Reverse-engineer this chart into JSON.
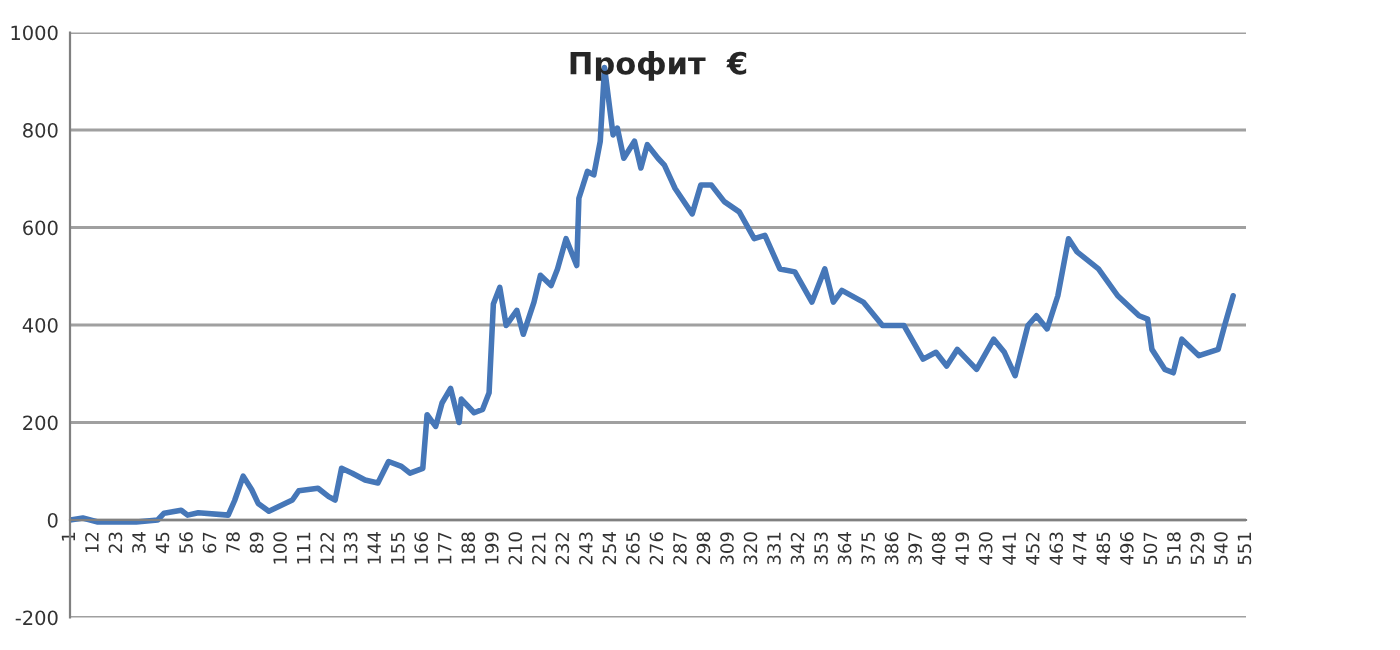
{
  "chart_data": {
    "type": "line",
    "title": "Профит  €",
    "x": [
      1,
      7,
      14,
      32,
      42,
      45,
      53,
      56,
      61,
      75,
      78,
      82,
      86,
      89,
      94,
      105,
      108,
      117,
      122,
      125,
      128,
      133,
      139,
      145,
      150,
      156,
      160,
      166,
      168,
      172,
      175,
      179,
      183,
      184,
      190,
      194,
      197,
      199,
      202,
      205,
      210,
      213,
      218,
      221,
      226,
      229,
      233,
      238,
      239,
      243,
      246,
      249,
      251,
      255,
      257,
      260,
      265,
      268,
      271,
      276,
      279,
      284,
      292,
      296,
      301,
      307,
      314,
      321,
      326,
      333,
      340,
      348,
      354,
      358,
      362,
      372,
      381,
      391,
      400,
      406,
      411,
      416,
      425,
      433,
      438,
      443,
      449,
      453,
      458,
      463,
      468,
      472,
      482,
      491,
      501,
      505,
      507,
      513,
      517,
      521,
      529,
      538,
      541,
      545
    ],
    "series": [
      {
        "color": "#4677b8",
        "values": [
          0,
          4,
          -4,
          -4,
          0,
          14,
          20,
          10,
          15,
          10,
          40,
          90,
          62,
          34,
          18,
          41,
          60,
          65,
          48,
          41,
          106,
          96,
          82,
          76,
          120,
          110,
          96,
          106,
          216,
          192,
          240,
          270,
          200,
          248,
          220,
          227,
          261,
          443,
          477,
          399,
          430,
          381,
          447,
          502,
          481,
          515,
          577,
          522,
          660,
          715,
          708,
          777,
          928,
          790,
          804,
          742,
          777,
          722,
          770,
          742,
          728,
          680,
          628,
          687,
          687,
          653,
          632,
          577,
          584,
          515,
          509,
          447,
          515,
          447,
          471,
          447,
          399,
          399,
          330,
          344,
          316,
          350,
          309,
          371,
          344,
          296,
          399,
          419,
          392,
          460,
          577,
          550,
          515,
          460,
          419,
          412,
          350,
          309,
          302,
          371,
          337,
          350,
          399,
          460
        ]
      }
    ],
    "xlim": [
      1,
      551
    ],
    "xticks": [
      1,
      12,
      23,
      34,
      45,
      56,
      67,
      78,
      89,
      100,
      111,
      122,
      133,
      144,
      155,
      166,
      177,
      188,
      199,
      210,
      221,
      232,
      243,
      254,
      265,
      276,
      287,
      298,
      309,
      320,
      331,
      342,
      353,
      364,
      375,
      386,
      397,
      408,
      419,
      430,
      441,
      452,
      463,
      474,
      485,
      496,
      507,
      518,
      529,
      540,
      551
    ],
    "ylim": [
      -200,
      1000
    ],
    "yticks": [
      -200,
      0,
      200,
      400,
      600,
      800,
      1000
    ],
    "grid": "y",
    "legend": false,
    "marker": "none",
    "line_style": "solid"
  }
}
